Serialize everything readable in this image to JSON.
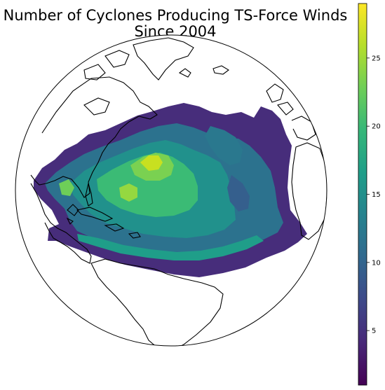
{
  "title": {
    "line1": "Number of Cyclones Producing TS-Force Winds",
    "line2": "Since 2004"
  },
  "colorbar": {
    "colormap": "viridis",
    "range": [
      1,
      29
    ],
    "ticks": [
      {
        "value": 5,
        "label": "5"
      },
      {
        "value": 10,
        "label": "10"
      },
      {
        "value": 15,
        "label": "15"
      },
      {
        "value": 20,
        "label": "20"
      },
      {
        "value": 25,
        "label": "25"
      }
    ],
    "stops": [
      "#440154",
      "#482878",
      "#3e4989",
      "#31688e",
      "#26828e",
      "#1f9e89",
      "#35b779",
      "#6ece58",
      "#b5de2b",
      "#fde725"
    ]
  },
  "map": {
    "projection": "orthographic globe",
    "coastline_color": "#000000",
    "ocean_color": "#ffffff"
  }
}
